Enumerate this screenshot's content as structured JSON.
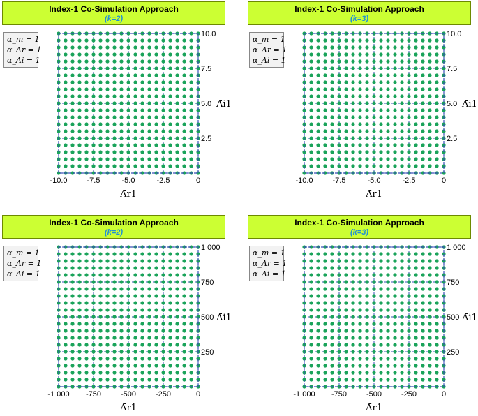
{
  "panels": [
    {
      "title": "Index-1 Co-Simulation Approach",
      "subtitle_k": "k",
      "subtitle_value": "=2",
      "params": [
        "α_m = 1",
        "α_Λr = 1",
        "α_Λi = 1"
      ],
      "xlabel": "Λ̄r1",
      "ylabel": "Λ̄i1"
    },
    {
      "title": "Index-1 Co-Simulation Approach",
      "subtitle_k": "k",
      "subtitle_value": "=3",
      "params": [
        "α_m = 1",
        "α_Λr = 1",
        "α_Λi = 1"
      ],
      "xlabel": "Λ̄r1",
      "ylabel": "Λ̄i1"
    },
    {
      "title": "Index-1 Co-Simulation Approach",
      "subtitle_k": "k",
      "subtitle_value": "=2",
      "params": [
        "α_m = 1",
        "α_Λr = 1",
        "α_Λi = 1"
      ],
      "xlabel": "Λ̄r1",
      "ylabel": "Λ̄i1"
    },
    {
      "title": "Index-1 Co-Simulation Approach",
      "subtitle_k": "k",
      "subtitle_value": "=3",
      "params": [
        "α_m = 1",
        "α_Λr = 1",
        "α_Λi = 1"
      ],
      "xlabel": "Λ̄r1",
      "ylabel": "Λ̄i1"
    }
  ],
  "chart_data": [
    {
      "type": "scatter",
      "title": "Index-1 Co-Simulation Approach (k=2)",
      "xlim": [
        -10,
        0
      ],
      "ylim": [
        0,
        10
      ],
      "xticks": [
        -10,
        -7.5,
        -5,
        -2.5,
        0
      ],
      "xtick_labels": [
        "-10.0",
        "-7.5",
        "-5.0",
        "-2.5",
        "0"
      ],
      "yticks": [
        2.5,
        5,
        7.5,
        10
      ],
      "ytick_labels": [
        "2.5",
        "5.0",
        "7.5",
        "10.0"
      ],
      "grid": true,
      "marker_color": "#1aa35a",
      "grid_color": "#3b4fb8",
      "points_grid": {
        "x_start": -10,
        "x_end": 0,
        "x_count": 21,
        "y_start": 0,
        "y_end": 10,
        "y_count": 21
      }
    },
    {
      "type": "scatter",
      "title": "Index-1 Co-Simulation Approach (k=3)",
      "xlim": [
        -10,
        0
      ],
      "ylim": [
        0,
        10
      ],
      "xticks": [
        -10,
        -7.5,
        -5,
        -2.5,
        0
      ],
      "xtick_labels": [
        "-10.0",
        "-7.5",
        "-5.0",
        "-2.5",
        "0"
      ],
      "yticks": [
        2.5,
        5,
        7.5,
        10
      ],
      "ytick_labels": [
        "2.5",
        "5.0",
        "7.5",
        "10.0"
      ],
      "grid": true,
      "marker_color": "#1aa35a",
      "grid_color": "#3b4fb8",
      "points_grid": {
        "x_start": -10,
        "x_end": 0,
        "x_count": 21,
        "y_start": 0,
        "y_end": 10,
        "y_count": 21
      }
    },
    {
      "type": "scatter",
      "title": "Index-1 Co-Simulation Approach (k=2)",
      "xlim": [
        -1000,
        0
      ],
      "ylim": [
        0,
        1000
      ],
      "xticks": [
        -1000,
        -750,
        -500,
        -250,
        0
      ],
      "xtick_labels": [
        "-1 000",
        "-750",
        "-500",
        "-250",
        "0"
      ],
      "yticks": [
        250,
        500,
        750,
        1000
      ],
      "ytick_labels": [
        "250",
        "500",
        "750",
        "1 000"
      ],
      "grid": true,
      "marker_color": "#1aa35a",
      "grid_color": "#3b4fb8",
      "points_grid": {
        "x_start": -1000,
        "x_end": 0,
        "x_count": 21,
        "y_start": 0,
        "y_end": 1000,
        "y_count": 21
      }
    },
    {
      "type": "scatter",
      "title": "Index-1 Co-Simulation Approach (k=3)",
      "xlim": [
        -1000,
        0
      ],
      "ylim": [
        0,
        1000
      ],
      "xticks": [
        -1000,
        -750,
        -500,
        -250,
        0
      ],
      "xtick_labels": [
        "-1 000",
        "-750",
        "-500",
        "-250",
        "0"
      ],
      "yticks": [
        250,
        500,
        750,
        1000
      ],
      "ytick_labels": [
        "250",
        "500",
        "750",
        "1 000"
      ],
      "grid": true,
      "marker_color": "#1aa35a",
      "grid_color": "#3b4fb8",
      "points_grid": {
        "x_start": -1000,
        "x_end": 0,
        "x_count": 21,
        "y_start": 0,
        "y_end": 1000,
        "y_count": 21
      }
    }
  ]
}
